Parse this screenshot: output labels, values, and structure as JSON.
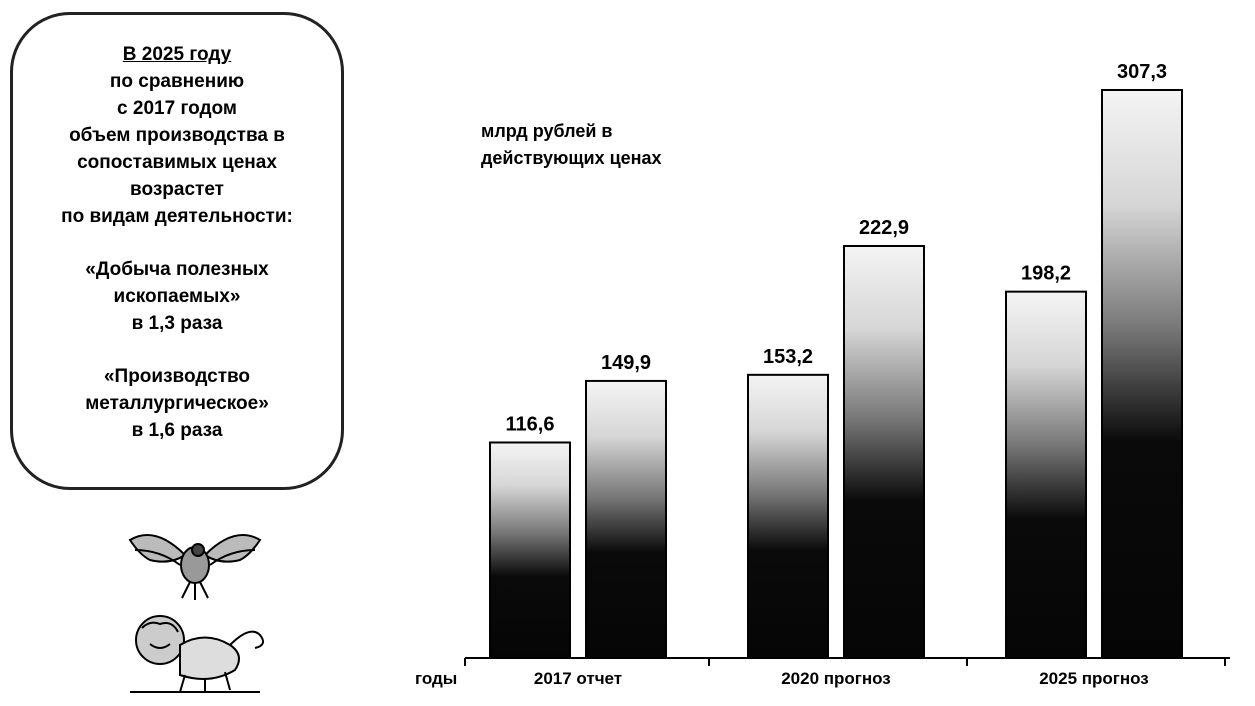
{
  "callout": {
    "title": "В 2025 году",
    "lines": [
      "по сравнению",
      "с 2017 годом",
      "объем производства в",
      "сопоставимых ценах",
      "возрастет",
      "по видам деятельности:"
    ],
    "item1": [
      "«Добыча полезных",
      "ископаемых»",
      "в 1,3 раза"
    ],
    "item2": [
      "«Производство",
      "металлургическое»",
      "в 1,6 раза"
    ]
  },
  "chart_data": {
    "type": "bar",
    "unit_label": [
      "млрд рублей в",
      "действующих ценах"
    ],
    "x_axis_prefix": "годы",
    "categories": [
      "2017 отчет",
      "2020 прогноз",
      "2025 прогноз"
    ],
    "series": [
      {
        "values": [
          116.6,
          153.2,
          198.2
        ],
        "labels": [
          "116,6",
          "153,2",
          "198,2"
        ]
      },
      {
        "values": [
          149.9,
          222.9,
          307.3
        ],
        "labels": [
          "149,9",
          "222,9",
          "307,3"
        ]
      }
    ],
    "ylim": [
      0,
      320
    ],
    "grid": false,
    "legend": "none",
    "colors": {
      "bar_dark": "#050505",
      "bar_light": "#f2f2f2",
      "outline": "#000000"
    }
  },
  "emblems": [
    "eagle-emblem-icon",
    "lion-emblem-icon"
  ]
}
